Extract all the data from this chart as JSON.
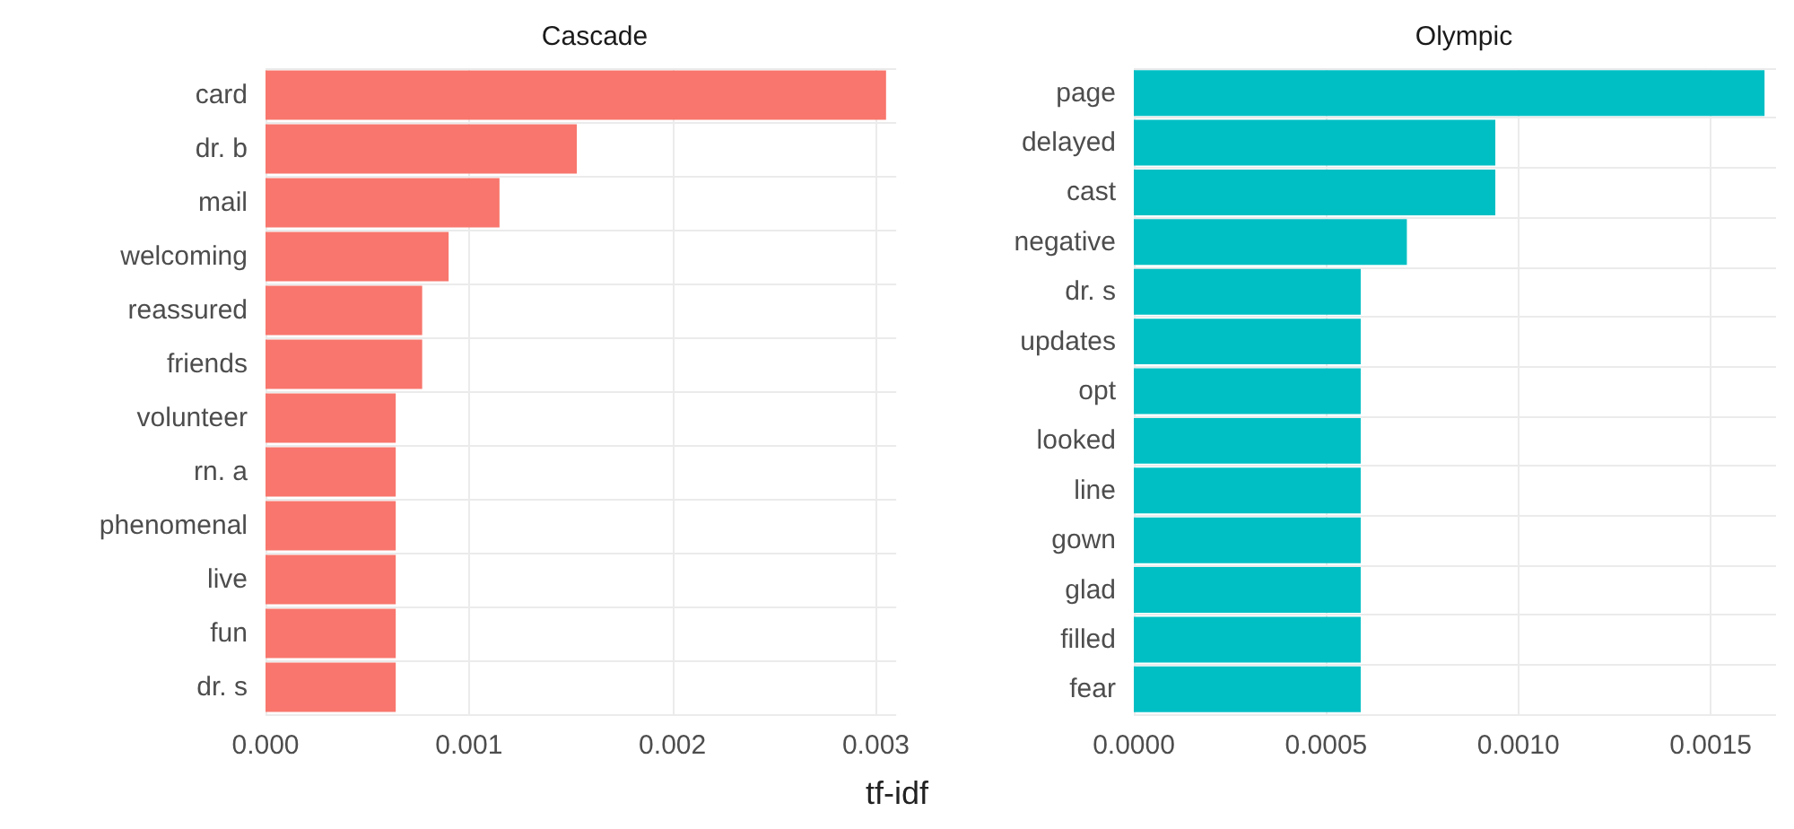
{
  "chart_data": [
    {
      "type": "bar",
      "title": "Cascade",
      "xlabel": "tf-idf",
      "orientation": "horizontal",
      "grid": true,
      "color": "#f8766d",
      "categories": [
        "card",
        "dr. b",
        "mail",
        "welcoming",
        "reassured",
        "friends",
        "volunteer",
        "rn. a",
        "phenomenal",
        "live",
        "fun",
        "dr. s"
      ],
      "values": [
        0.00305,
        0.00153,
        0.00115,
        0.0009,
        0.00077,
        0.00077,
        0.00064,
        0.00064,
        0.00064,
        0.00064,
        0.00064,
        0.00064
      ],
      "xlim": [
        0,
        0.0031
      ],
      "xticks": [
        {
          "value": 0,
          "label": "0.000"
        },
        {
          "value": 0.001,
          "label": "0.001"
        },
        {
          "value": 0.002,
          "label": "0.002"
        },
        {
          "value": 0.003,
          "label": "0.003"
        }
      ]
    },
    {
      "type": "bar",
      "title": "Olympic",
      "orientation": "horizontal",
      "grid": true,
      "color": "#00bfc4",
      "categories": [
        "page",
        "delayed",
        "cast",
        "negative",
        "dr. s",
        "updates",
        "opt",
        "looked",
        "line",
        "gown",
        "glad",
        "filled",
        "fear"
      ],
      "values": [
        0.00164,
        0.00094,
        0.00094,
        0.00071,
        0.00059,
        0.00059,
        0.00059,
        0.00059,
        0.00059,
        0.00059,
        0.00059,
        0.00059,
        0.00059
      ],
      "xlim": [
        0,
        0.00167
      ],
      "xticks": [
        {
          "value": 0,
          "label": "0.0000"
        },
        {
          "value": 0.0005,
          "label": "0.0005"
        },
        {
          "value": 0.001,
          "label": "0.0010"
        },
        {
          "value": 0.0015,
          "label": "0.0015"
        }
      ]
    }
  ]
}
